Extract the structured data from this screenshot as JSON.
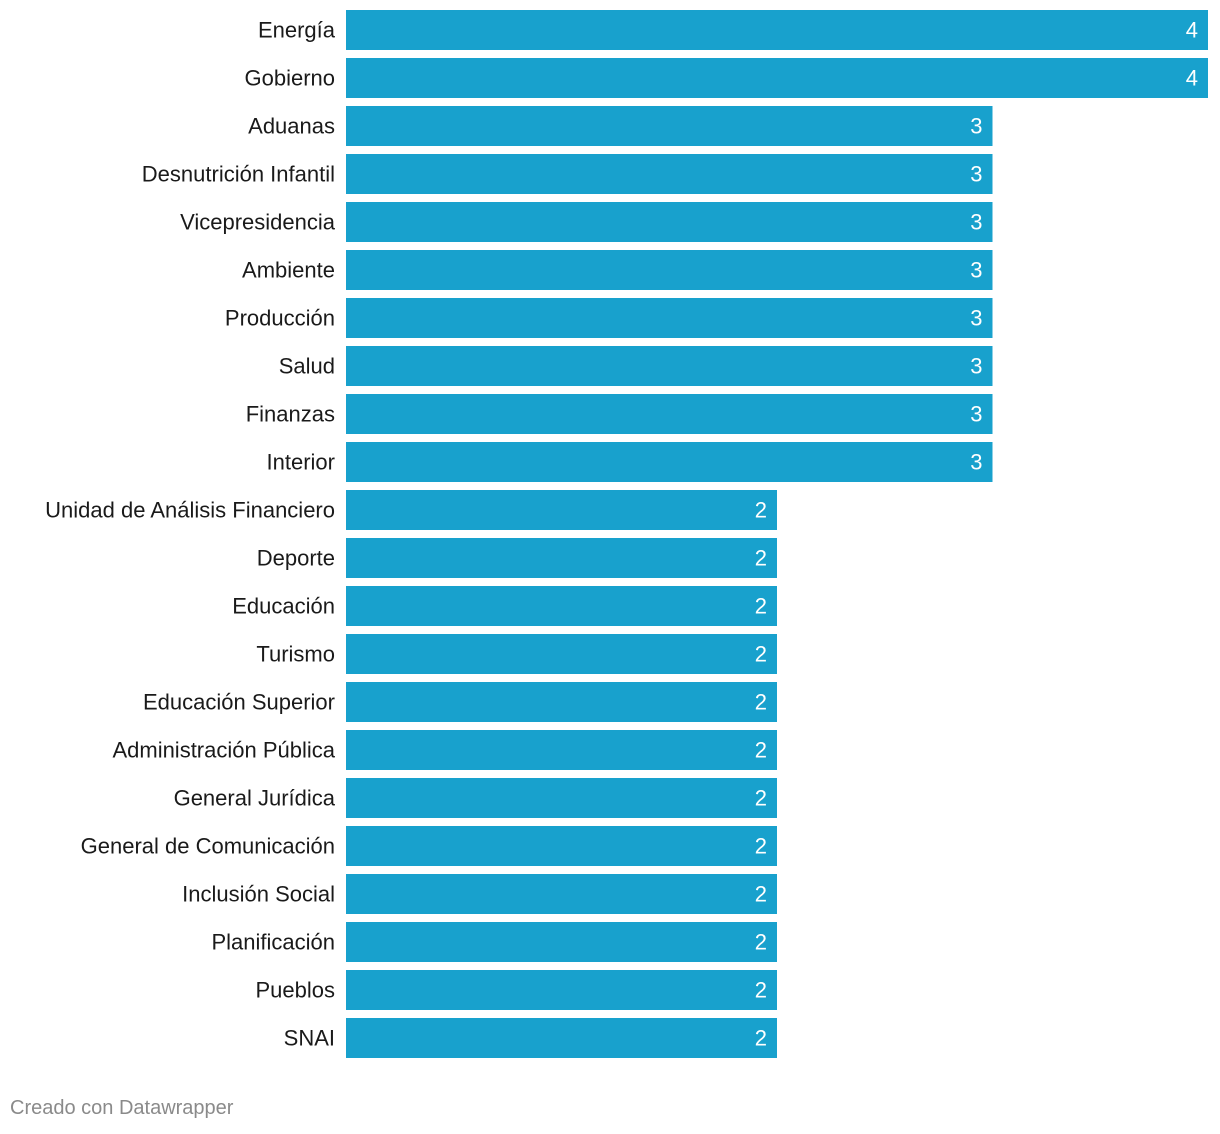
{
  "chart_data": {
    "type": "bar",
    "orientation": "horizontal",
    "title": "",
    "xlabel": "",
    "ylabel": "",
    "categories": [
      "Energía",
      "Gobierno",
      "Aduanas",
      "Desnutrición Infantil",
      "Vicepresidencia",
      "Ambiente",
      "Producción",
      "Salud",
      "Finanzas",
      "Interior",
      "Unidad de Análisis Financiero",
      "Deporte",
      "Educación",
      "Turismo",
      "Educación Superior",
      "Administración Pública",
      "General Jurídica",
      "General de Comunicación",
      "Inclusión Social",
      "Planificación",
      "Pueblos",
      "SNAI"
    ],
    "values": [
      4,
      4,
      3,
      3,
      3,
      3,
      3,
      3,
      3,
      3,
      2,
      2,
      2,
      2,
      2,
      2,
      2,
      2,
      2,
      2,
      2,
      2
    ],
    "xlim": [
      0,
      4
    ],
    "grid": false,
    "legend": "none",
    "bar_color": "#18a1cd",
    "data_labels": "inside-end"
  },
  "footer": {
    "credit": "Creado con Datawrapper"
  }
}
